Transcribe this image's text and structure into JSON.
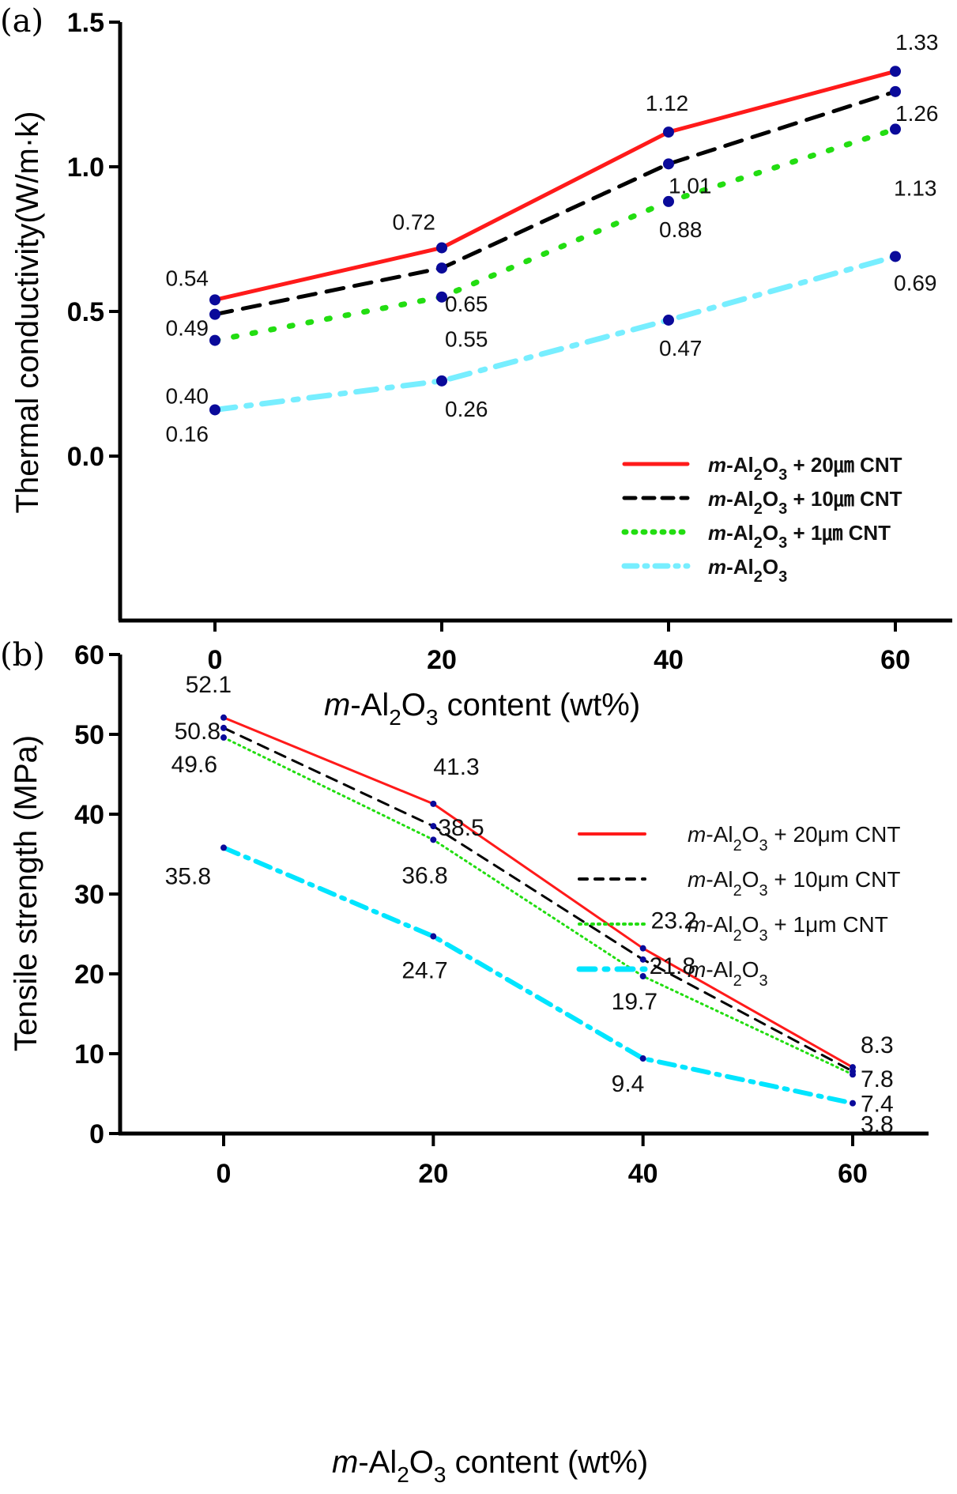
{
  "chart_data": [
    {
      "id": "a",
      "type": "line",
      "panel_label": "(a)",
      "title": "",
      "xlabel": "m-Al2O3 content (wt%)",
      "xlabel_parts": {
        "italic": "m",
        "rest": "-Al",
        "sub1": "2",
        "mid": "O",
        "sub2": "3",
        "tail": " content (wt%)"
      },
      "ylabel": "Thermal conductivity(W/m·k)",
      "x": [
        0,
        20,
        40,
        60
      ],
      "xticks": [
        "0",
        "20",
        "40",
        "60"
      ],
      "yticks": [
        "0.0",
        "0.5",
        "1.0",
        "1.5"
      ],
      "ytick_values": [
        0.0,
        0.5,
        1.0,
        1.5
      ],
      "ylim": [
        -0.2,
        1.5
      ],
      "xlim": [
        -5,
        65
      ],
      "grid": false,
      "legend_position": "bottom-right",
      "marker_color": "#0a0a9a",
      "series": [
        {
          "name": "m-Al2O3 + 20㎛ CNT",
          "legend_tail": " + 20㎛ CNT",
          "color": "#ff1a1a",
          "style": "solid",
          "values": [
            0.54,
            0.72,
            1.12,
            1.33
          ],
          "labels": [
            "0.54",
            "0.72",
            "1.12",
            "1.33"
          ]
        },
        {
          "name": "m-Al2O3 + 10㎛ CNT",
          "legend_tail": " + 10㎛ CNT",
          "color": "#000000",
          "style": "dash",
          "values": [
            0.49,
            0.65,
            1.01,
            1.26
          ],
          "labels": [
            "0.49",
            "0.65",
            "1.01",
            "1.26"
          ]
        },
        {
          "name": "m-Al2O3 + 1㎛ CNT",
          "legend_tail": " + 1㎛ CNT",
          "color": "#22dd11",
          "style": "dot",
          "values": [
            0.4,
            0.55,
            0.88,
            1.13
          ],
          "labels": [
            "0.40",
            "0.55",
            "0.88",
            "1.13"
          ]
        },
        {
          "name": "m-Al2O3",
          "legend_tail": "",
          "color": "#77eeff",
          "style": "dashdot",
          "values": [
            0.16,
            0.26,
            0.47,
            0.69
          ],
          "labels": [
            "0.16",
            "0.26",
            "0.47",
            "0.69"
          ]
        }
      ]
    },
    {
      "id": "b",
      "type": "line",
      "panel_label": "(b)",
      "title": "",
      "xlabel": "m-Al2O3 content (wt%)",
      "xlabel_parts": {
        "italic": "m",
        "rest": "-Al",
        "sub1": "2",
        "mid": "O",
        "sub2": "3",
        "tail": " content (wt%)"
      },
      "ylabel": "Tensile strength (MPa)",
      "x": [
        0,
        20,
        40,
        60
      ],
      "xticks": [
        "0",
        "20",
        "40",
        "60"
      ],
      "yticks": [
        "0",
        "10",
        "20",
        "30",
        "40",
        "50",
        "60"
      ],
      "ytick_values": [
        0,
        10,
        20,
        30,
        40,
        50,
        60
      ],
      "ylim": [
        0,
        60
      ],
      "xlim": [
        -7,
        66
      ],
      "grid": false,
      "legend_position": "top-right",
      "marker_color": "#0a0a9a",
      "series": [
        {
          "name": "m-Al2O3 + 20μm CNT",
          "legend_tail": " + 20μm CNT",
          "color": "#ff1a1a",
          "style": "solid",
          "values": [
            52.1,
            41.3,
            23.2,
            8.3
          ],
          "labels": [
            "52.1",
            "41.3",
            "23.2",
            "8.3"
          ]
        },
        {
          "name": "m-Al2O3 + 10μm CNT",
          "legend_tail": " + 10μm CNT",
          "color": "#000000",
          "style": "dash",
          "values": [
            50.8,
            38.5,
            21.8,
            7.8
          ],
          "labels": [
            "50.8",
            "38.5",
            "21.8",
            "7.8"
          ]
        },
        {
          "name": "m-Al2O3 + 1μm CNT",
          "legend_tail": " + 1μm CNT",
          "color": "#22dd11",
          "style": "dot",
          "values": [
            49.6,
            36.8,
            19.7,
            7.4
          ],
          "labels": [
            "49.6",
            "36.8",
            "19.7",
            "7.4"
          ]
        },
        {
          "name": "m-Al2O3",
          "legend_tail": "",
          "color": "#00e5ff",
          "style": "dashdot",
          "values": [
            35.8,
            24.7,
            9.4,
            3.8
          ],
          "labels": [
            "35.8",
            "24.7",
            "9.4",
            "3.8"
          ]
        }
      ]
    }
  ]
}
